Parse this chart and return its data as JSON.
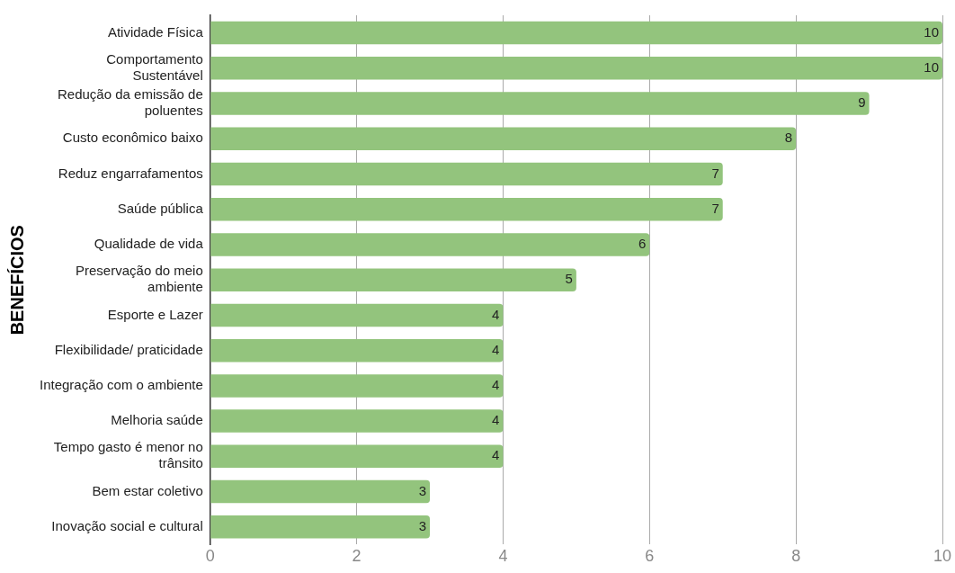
{
  "chart_data": {
    "type": "bar",
    "orientation": "horizontal",
    "ylabel": "BENEFÍCIOS",
    "categories": [
      "Atividade Física",
      "Comportamento Sustentável",
      "Redução da emissão de poluentes",
      "Custo econômico baixo",
      "Reduz engarrafamentos",
      "Saúde pública",
      "Qualidade de vida",
      "Preservação do meio ambiente",
      "Esporte e Lazer",
      "Flexibilidade/ praticidade",
      "Integração com o ambiente",
      "Melhoria saúde",
      "Tempo gasto é menor no trânsito",
      "Bem estar coletivo",
      "Inovação social e cultural"
    ],
    "values": [
      10,
      10,
      9,
      8,
      7,
      7,
      6,
      5,
      4,
      4,
      4,
      4,
      4,
      3,
      3
    ],
    "color": "#93c47d",
    "xlim": [
      0,
      10
    ],
    "xticks": [
      0,
      2,
      4,
      6,
      8,
      10
    ],
    "grid": "x",
    "data_labels": true
  }
}
